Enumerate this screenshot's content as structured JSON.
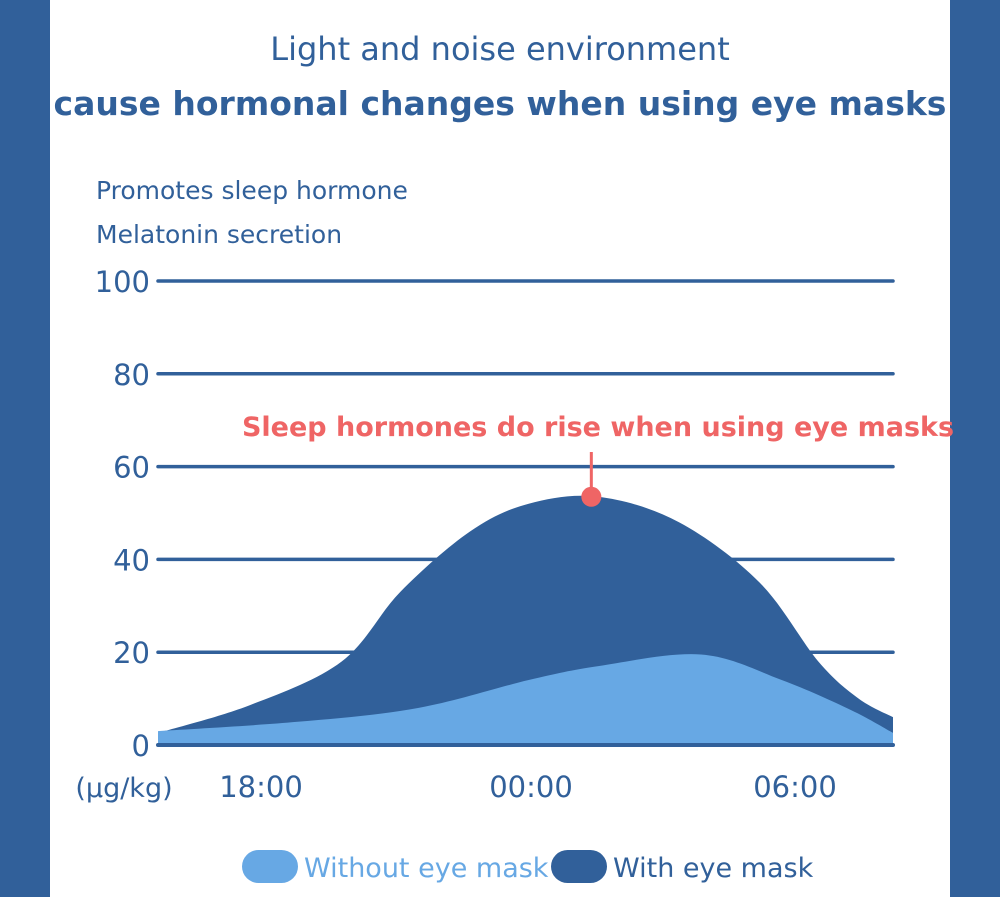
{
  "title_line1": "Light and noise environment",
  "title_line2": "cause hormonal changes when using eye masks",
  "chart_data": {
    "type": "area",
    "ylabel_line1": "Promotes sleep hormone",
    "ylabel_line2": "Melatonin secretion",
    "unit": "(μg/kg)",
    "ylim": [
      0,
      100
    ],
    "yticks": [
      "0",
      "20",
      "40",
      "60",
      "80",
      "100"
    ],
    "xticks": [
      "18:00",
      "00:00",
      "06:00"
    ],
    "grid": true,
    "legend_placement": "bottom",
    "annotation": {
      "text": "Sleep hormones do rise when using eye masks",
      "x": "01:40",
      "y": 53.5,
      "color": "#ef6565"
    },
    "series": [
      {
        "name": "With eye mask",
        "color": "#31609a",
        "x": [
          "15:40",
          "17:45",
          "19:50",
          "21:10",
          "22:45",
          "00:05",
          "01:40",
          "03:30",
          "05:20",
          "06:40",
          "07:35",
          "08:20"
        ],
        "values": [
          2.6,
          8.6,
          18,
          33,
          46,
          52,
          53.5,
          48,
          35,
          18,
          10,
          6
        ]
      },
      {
        "name": "Without eye mask",
        "color": "#67a8e4",
        "x": [
          "15:40",
          "18:50",
          "21:35",
          "00:05",
          "01:40",
          "04:00",
          "05:50",
          "07:25",
          "08:20"
        ],
        "values": [
          3,
          5,
          8,
          14,
          17,
          19.5,
          14,
          7.5,
          2.6
        ]
      }
    ]
  }
}
